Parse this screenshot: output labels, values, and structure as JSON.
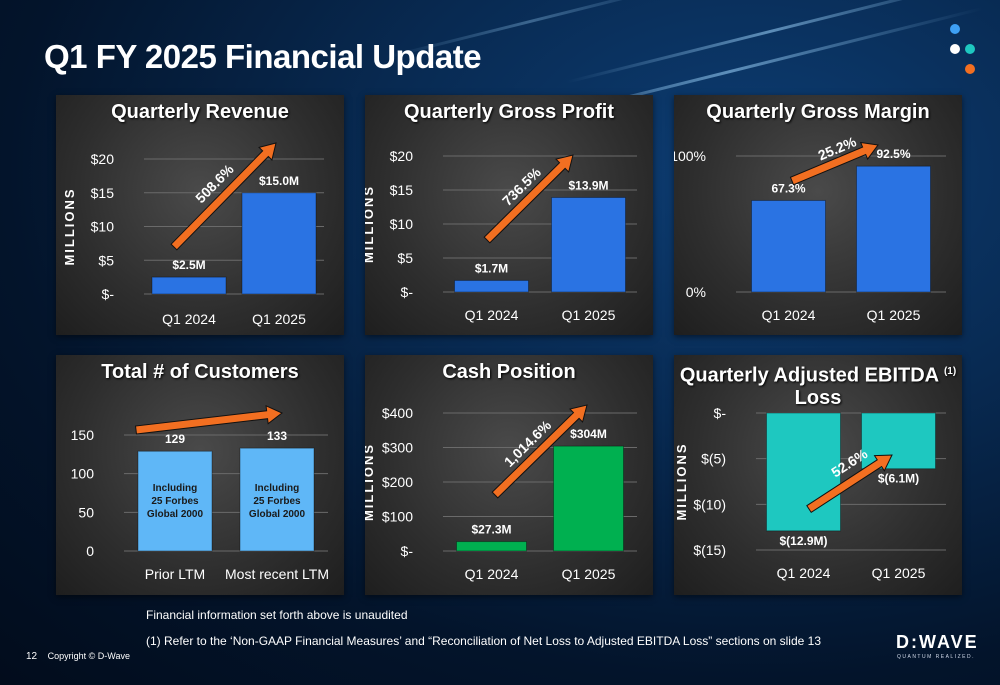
{
  "slide": {
    "title": "Q1 FY 2025 Financial Update",
    "footnote1": "Financial information set forth above is unaudited",
    "footnote2": "(1) Refer to the ‘Non-GAAP Financial Measures’ and “Reconciliation of Net Loss to Adjusted EBITDA Loss” sections on slide 13",
    "page_number": "12",
    "copyright": "Copyright © D-Wave",
    "logo_text": "D:WAVE",
    "logo_tagline": "QUANTUM REALIZED."
  },
  "colors": {
    "blue_bar": "#2a73e3",
    "light_blue_bar": "#5fb7f7",
    "green_bar": "#00b050",
    "teal_bar": "#1ec8c0",
    "arrow": "#f26f21",
    "dot_blue": "#3ea0f5",
    "dot_white": "#ffffff",
    "dot_teal": "#1ec8c0",
    "dot_orange": "#f26f21"
  },
  "chart_data": [
    {
      "id": "revenue",
      "type": "bar",
      "title": "Quarterly Revenue",
      "ylabel": "MILLIONS",
      "categories": [
        "Q1 2024",
        "Q1 2025"
      ],
      "values": [
        2.5,
        15.0
      ],
      "data_labels": [
        "$2.5M",
        "$15.0M"
      ],
      "ylim": [
        0,
        20
      ],
      "yticks": [
        0,
        5,
        10,
        15,
        20
      ],
      "ytick_labels": [
        "$-",
        "$5",
        "$10",
        "$15",
        "$20"
      ],
      "growth_label": "508.6%",
      "bar_color": "#2a73e3",
      "grid": true
    },
    {
      "id": "gross-profit",
      "type": "bar",
      "title": "Quarterly Gross Profit",
      "ylabel": "MILLIONS",
      "categories": [
        "Q1 2024",
        "Q1 2025"
      ],
      "values": [
        1.7,
        13.9
      ],
      "data_labels": [
        "$1.7M",
        "$13.9M"
      ],
      "ylim": [
        0,
        20
      ],
      "yticks": [
        0,
        5,
        10,
        15,
        20
      ],
      "ytick_labels": [
        "$-",
        "$5",
        "$10",
        "$15",
        "$20"
      ],
      "growth_label": "736.5%",
      "bar_color": "#2a73e3",
      "grid": true
    },
    {
      "id": "gross-margin",
      "type": "bar",
      "title": "Quarterly Gross Margin",
      "ylabel": "",
      "categories": [
        "Q1 2024",
        "Q1 2025"
      ],
      "values": [
        67.3,
        92.5
      ],
      "data_labels": [
        "67.3%",
        "92.5%"
      ],
      "ylim": [
        0,
        100
      ],
      "yticks": [
        0,
        100
      ],
      "ytick_labels": [
        "0%",
        "100%"
      ],
      "growth_label": "25.2%",
      "bar_color": "#2a73e3",
      "grid": true
    },
    {
      "id": "customers",
      "type": "bar",
      "title": "Total # of Customers",
      "ylabel": "",
      "categories": [
        "Prior LTM",
        "Most recent LTM"
      ],
      "values": [
        129,
        133
      ],
      "data_labels": [
        "129",
        "133"
      ],
      "bar_notes": [
        "Including 25 Forbes Global 2000",
        "Including 25 Forbes Global 2000"
      ],
      "ylim": [
        0,
        150
      ],
      "yticks": [
        0,
        50,
        100,
        150
      ],
      "ytick_labels": [
        "0",
        "50",
        "100",
        "150"
      ],
      "growth_label": "",
      "bar_color": "#5fb7f7",
      "grid": true
    },
    {
      "id": "cash",
      "type": "bar",
      "title": "Cash Position",
      "ylabel": "MILLIONS",
      "categories": [
        "Q1 2024",
        "Q1 2025"
      ],
      "values": [
        27.3,
        304
      ],
      "data_labels": [
        "$27.3M",
        "$304M"
      ],
      "ylim": [
        0,
        400
      ],
      "yticks": [
        0,
        100,
        200,
        300,
        400
      ],
      "ytick_labels": [
        "$-",
        "$100",
        "$200",
        "$300",
        "$400"
      ],
      "growth_label": "1,014.6%",
      "bar_color": "#00b050",
      "grid": true
    },
    {
      "id": "ebitda",
      "type": "bar",
      "title": "Quarterly Adjusted EBITDA",
      "title_line2": "Loss",
      "title_superscript": "(1)",
      "ylabel": "MILLIONS",
      "categories": [
        "Q1 2024",
        "Q1 2025"
      ],
      "values": [
        -12.9,
        -6.1
      ],
      "data_labels": [
        "$(12.9M)",
        "$(6.1M)"
      ],
      "ylim": [
        -15,
        0
      ],
      "yticks": [
        -15,
        -10,
        -5,
        0
      ],
      "ytick_labels": [
        "$(15)",
        "$(10)",
        "$(5)",
        "$-"
      ],
      "growth_label": "52.6%",
      "bar_color": "#1ec8c0",
      "grid": true
    }
  ]
}
